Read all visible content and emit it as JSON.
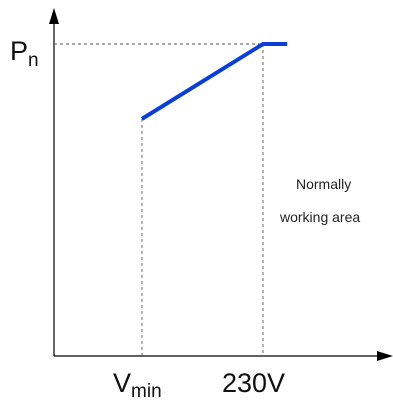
{
  "chart_data": {
    "type": "line",
    "y_axis_label": {
      "main": "P",
      "sub": "n"
    },
    "x_tick_labels": {
      "vmin": {
        "main": "V",
        "sub": "min"
      },
      "v230": "230V"
    },
    "annotation": [
      "Normally",
      "working area"
    ],
    "x_reference_values": {
      "vmin": 0,
      "v230": 1
    },
    "series": [
      {
        "x": [
          0,
          1,
          1.2
        ],
        "y": [
          0.76,
          1.0,
          1.0
        ]
      }
    ],
    "axis_color": "#000000",
    "series_color": "#0b3fd4",
    "guide_line_style": "dashed"
  }
}
